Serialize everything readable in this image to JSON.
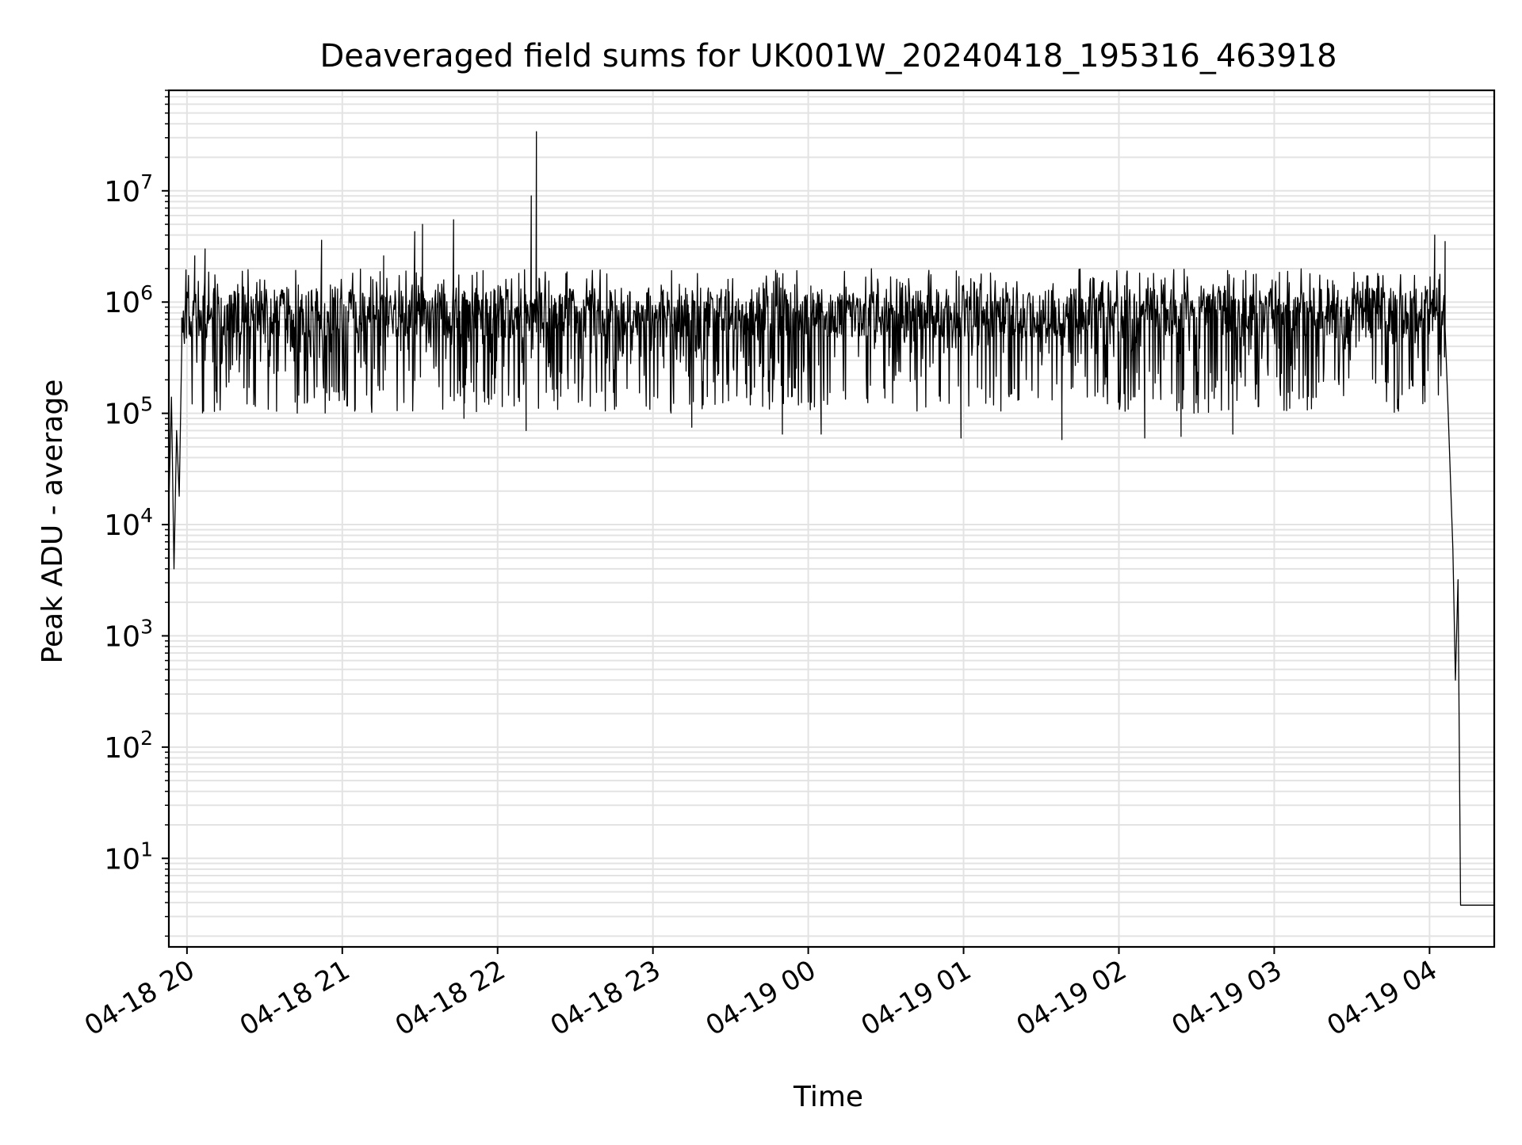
{
  "chart_data": {
    "type": "line",
    "title": "Deaveraged field sums for UK001W_20240418_195316_463918",
    "xlabel": "Time",
    "ylabel": "Peak ADU - average",
    "yscale": "log",
    "ylim": [
      1.6,
      80000000
    ],
    "xlim": [
      "2024-04-18 19:53",
      "2024-04-19 04:25"
    ],
    "grid": true,
    "line_color": "#000000",
    "x_ticks": [
      {
        "t": "2024-04-18 20:00",
        "label": "04-18 20"
      },
      {
        "t": "2024-04-18 21:00",
        "label": "04-18 21"
      },
      {
        "t": "2024-04-18 22:00",
        "label": "04-18 22"
      },
      {
        "t": "2024-04-18 23:00",
        "label": "04-18 23"
      },
      {
        "t": "2024-04-19 00:00",
        "label": "04-19 00"
      },
      {
        "t": "2024-04-19 01:00",
        "label": "04-19 01"
      },
      {
        "t": "2024-04-19 02:00",
        "label": "04-19 02"
      },
      {
        "t": "2024-04-19 03:00",
        "label": "04-19 03"
      },
      {
        "t": "2024-04-19 04:00",
        "label": "04-19 04"
      }
    ],
    "y_ticks": [
      {
        "v": 10,
        "base": "10",
        "exp": "1"
      },
      {
        "v": 100,
        "base": "10",
        "exp": "2"
      },
      {
        "v": 1000,
        "base": "10",
        "exp": "3"
      },
      {
        "v": 10000,
        "base": "10",
        "exp": "4"
      },
      {
        "v": 100000,
        "base": "10",
        "exp": "5"
      },
      {
        "v": 1000000,
        "base": "10",
        "exp": "6"
      },
      {
        "v": 10000000,
        "base": "10",
        "exp": "7"
      }
    ],
    "series": [
      {
        "description": "Dense noisy signal, typically between ~1e5 and ~2e6; notable spikes and final drop listed as anchor points",
        "noise_band": {
          "low": 100000,
          "high": 2000000,
          "typical": 800000
        },
        "points": [
          {
            "t": "2024-04-18 19:53",
            "v": 15000
          },
          {
            "t": "2024-04-18 19:54",
            "v": 140000
          },
          {
            "t": "2024-04-18 19:55",
            "v": 4000
          },
          {
            "t": "2024-04-18 19:56",
            "v": 70000
          },
          {
            "t": "2024-04-18 19:57",
            "v": 18000
          },
          {
            "t": "2024-04-18 19:58",
            "v": 400000
          },
          {
            "t": "2024-04-18 20:03",
            "v": 2600000
          },
          {
            "t": "2024-04-18 20:07",
            "v": 3000000
          },
          {
            "t": "2024-04-18 20:52",
            "v": 3600000
          },
          {
            "t": "2024-04-18 21:16",
            "v": 2600000
          },
          {
            "t": "2024-04-18 21:28",
            "v": 4300000
          },
          {
            "t": "2024-04-18 21:31",
            "v": 5000000
          },
          {
            "t": "2024-04-18 21:43",
            "v": 5500000
          },
          {
            "t": "2024-04-18 22:13",
            "v": 9000000
          },
          {
            "t": "2024-04-18 22:15",
            "v": 34000000
          },
          {
            "t": "2024-04-19 04:02",
            "v": 4000000
          },
          {
            "t": "2024-04-19 04:06",
            "v": 3500000
          },
          {
            "t": "2024-04-19 04:07",
            "v": 140000
          },
          {
            "t": "2024-04-19 04:09",
            "v": 6000
          },
          {
            "t": "2024-04-19 04:10",
            "v": 400
          },
          {
            "t": "2024-04-19 04:11",
            "v": 3200
          },
          {
            "t": "2024-04-19 04:12",
            "v": 3.8
          },
          {
            "t": "2024-04-19 04:25",
            "v": 3.8
          }
        ],
        "low_dips": [
          {
            "t": "2024-04-18 21:47",
            "v": 90000
          },
          {
            "t": "2024-04-18 22:11",
            "v": 70000
          },
          {
            "t": "2024-04-18 23:15",
            "v": 75000
          },
          {
            "t": "2024-04-18 23:50",
            "v": 65000
          },
          {
            "t": "2024-04-19 00:05",
            "v": 65000
          },
          {
            "t": "2024-04-19 00:59",
            "v": 60000
          },
          {
            "t": "2024-04-19 01:38",
            "v": 58000
          },
          {
            "t": "2024-04-19 02:10",
            "v": 60000
          },
          {
            "t": "2024-04-19 02:24",
            "v": 62000
          },
          {
            "t": "2024-04-19 02:44",
            "v": 65000
          }
        ]
      }
    ]
  }
}
